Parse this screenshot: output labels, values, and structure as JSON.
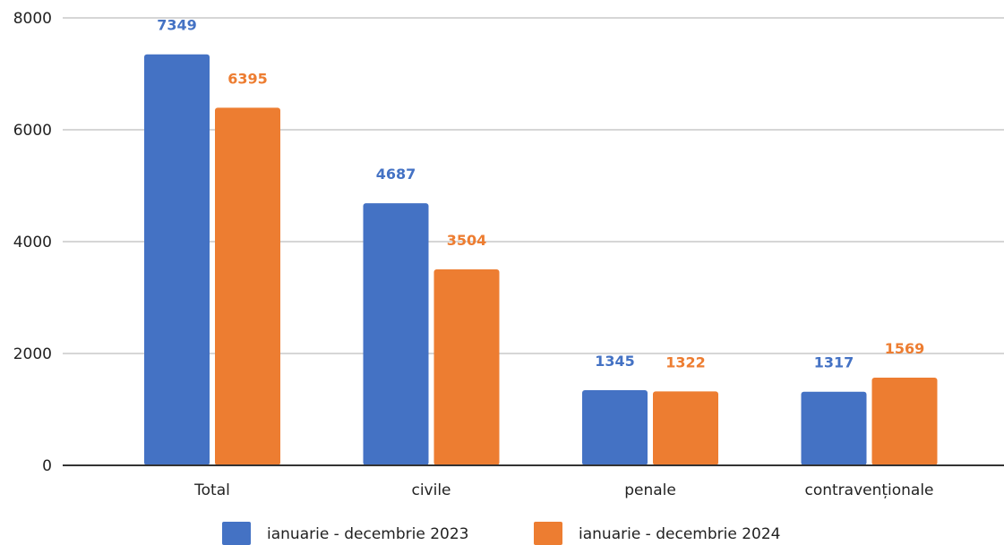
{
  "chart_data": {
    "type": "bar",
    "categories": [
      "Total",
      "civile",
      "penale",
      "contravenționale"
    ],
    "series": [
      {
        "name": "ianuarie - decembrie 2023",
        "values": [
          7349,
          4687,
          1345,
          1317
        ],
        "color": "#4472c4"
      },
      {
        "name": "ianuarie - decembrie 2024",
        "values": [
          6395,
          3504,
          1322,
          1569
        ],
        "color": "#ed7d31"
      }
    ],
    "ylim": [
      0,
      8000
    ],
    "yticks": [
      "0",
      "2000",
      "4000",
      "6000",
      "8000"
    ],
    "grid": true,
    "legend_position": "bottom",
    "data_labels": true
  }
}
